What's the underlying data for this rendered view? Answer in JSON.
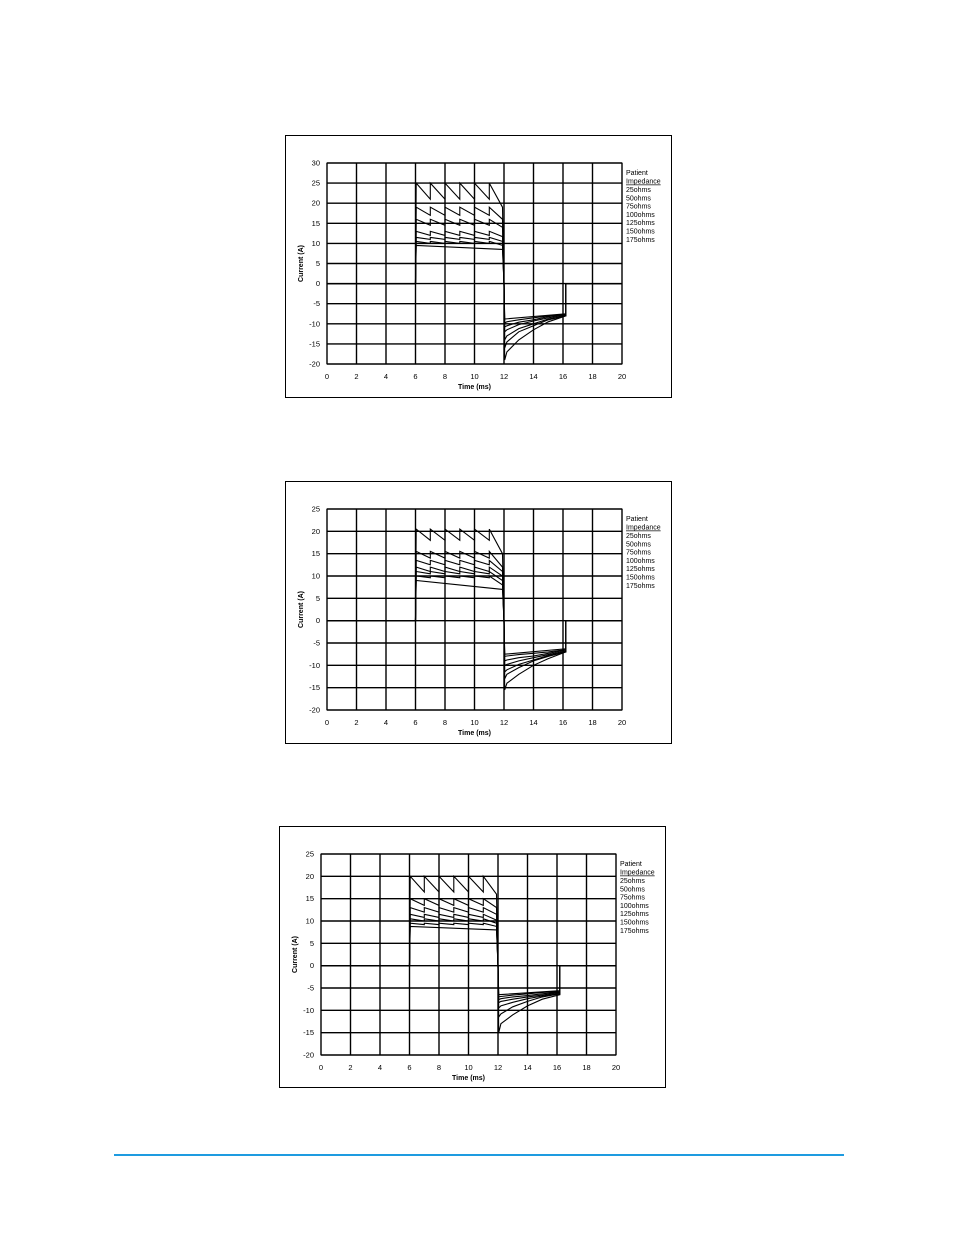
{
  "colors": {
    "footer_rule": "#1e9be0",
    "trace": "#000000"
  },
  "chart_data": [
    {
      "type": "line",
      "xlabel": "Time (ms)",
      "ylabel": "Current (A)",
      "xlim": [
        0,
        20
      ],
      "ylim": [
        -20,
        30
      ],
      "xticks": [
        "0",
        "2",
        "4",
        "6",
        "8",
        "10",
        "12",
        "14",
        "16",
        "18",
        "20"
      ],
      "yticks": [
        "30",
        "25",
        "20",
        "15",
        "10",
        "5",
        "0",
        "-5",
        "-10",
        "-15",
        "-20"
      ],
      "grid": true,
      "legend_position": "right",
      "legend_title": "Patient",
      "legend_subtitle": "Impedance",
      "series": [
        {
          "name": "25ohms",
          "x": [
            0,
            6,
            6.05,
            7,
            7,
            8,
            8,
            9,
            9,
            10,
            10,
            11,
            11,
            11.9,
            11.9,
            12,
            12.05,
            12.2,
            13,
            14,
            15,
            16.2,
            16.2,
            20
          ],
          "y": [
            0,
            0,
            25,
            21,
            25,
            21,
            25,
            21,
            25,
            21,
            25,
            21,
            25,
            19,
            19,
            0,
            -19,
            -17,
            -14,
            -11.5,
            -9.5,
            -8,
            0,
            0
          ]
        },
        {
          "name": "50ohms",
          "x": [
            0,
            6,
            6.05,
            7,
            7,
            8,
            8,
            9,
            9,
            10,
            10,
            11,
            11,
            11.9,
            11.9,
            12,
            12.05,
            12.2,
            13,
            14,
            15,
            16.2,
            16.2,
            20
          ],
          "y": [
            0,
            0,
            19,
            17,
            19,
            17,
            19,
            17,
            19,
            17,
            19,
            17,
            19,
            16,
            16,
            0,
            -16,
            -14.5,
            -12,
            -10.5,
            -9,
            -8,
            0,
            0
          ]
        },
        {
          "name": "75ohms",
          "x": [
            0,
            6,
            6.05,
            7,
            7,
            8,
            8,
            9,
            9,
            10,
            10,
            11,
            11,
            11.9,
            11.9,
            12,
            12.05,
            12.2,
            13,
            14,
            15,
            16.2,
            16.2,
            20
          ],
          "y": [
            0,
            0,
            16,
            14.5,
            16,
            14.5,
            16,
            14.5,
            16,
            14.5,
            16,
            14.5,
            16,
            14,
            14,
            0,
            -14,
            -13,
            -11.2,
            -10,
            -8.8,
            -8,
            0,
            0
          ]
        },
        {
          "name": "100ohms",
          "x": [
            0,
            6,
            6.05,
            7,
            7,
            8,
            8,
            9,
            9,
            10,
            10,
            11,
            11,
            11.9,
            11.9,
            12,
            12.05,
            12.2,
            13,
            14,
            15,
            16.2,
            16.2,
            20
          ],
          "y": [
            0,
            0,
            13,
            12,
            13,
            12,
            13,
            12,
            13,
            12,
            13,
            12,
            13,
            11.7,
            11.7,
            0,
            -12,
            -11.5,
            -10.2,
            -9.3,
            -8.5,
            -7.8,
            0,
            0
          ]
        },
        {
          "name": "125ohms",
          "x": [
            0,
            6,
            6.05,
            7,
            7,
            8,
            8,
            9,
            9,
            10,
            10,
            11,
            11,
            11.9,
            11.9,
            12,
            12.05,
            12.2,
            13,
            14,
            15,
            16.2,
            16.2,
            20
          ],
          "y": [
            0,
            0,
            11.5,
            11,
            11.5,
            11,
            11.5,
            11,
            11.5,
            11,
            11.5,
            11,
            11.5,
            10.5,
            10.5,
            0,
            -10.8,
            -10.5,
            -9.6,
            -9,
            -8.2,
            -7.7,
            0,
            0
          ]
        },
        {
          "name": "150ohms",
          "x": [
            0,
            6,
            6.05,
            7,
            7,
            8,
            8,
            9,
            9,
            10,
            10,
            11,
            11,
            11.9,
            11.9,
            12,
            12.05,
            12.2,
            13,
            14,
            15,
            16.2,
            16.2,
            20
          ],
          "y": [
            0,
            0,
            10.5,
            10,
            10.5,
            10,
            10.5,
            10,
            10.5,
            10,
            10.5,
            10,
            10.5,
            9.5,
            9.5,
            0,
            -9.8,
            -9.5,
            -9,
            -8.5,
            -8,
            -7.6,
            0,
            0
          ]
        },
        {
          "name": "175ohms",
          "x": [
            0,
            6,
            6.05,
            11.9,
            11.9,
            12,
            12.05,
            16.2,
            16.2,
            20
          ],
          "y": [
            0,
            0,
            9.5,
            8.5,
            8.5,
            0,
            -8.8,
            -7.5,
            0,
            0
          ]
        }
      ]
    },
    {
      "type": "line",
      "xlabel": "Time (ms)",
      "ylabel": "Current (A)",
      "xlim": [
        0,
        20
      ],
      "ylim": [
        -20,
        25
      ],
      "xticks": [
        "0",
        "2",
        "4",
        "6",
        "8",
        "10",
        "12",
        "14",
        "16",
        "18",
        "20"
      ],
      "yticks": [
        "25",
        "20",
        "15",
        "10",
        "5",
        "0",
        "-5",
        "-10",
        "-15",
        "-20"
      ],
      "grid": true,
      "legend_position": "right",
      "legend_title": "Patient",
      "legend_subtitle": "Impedance",
      "series": [
        {
          "name": "25ohms",
          "x": [
            0,
            6,
            6.05,
            7,
            7,
            8,
            8,
            9,
            9,
            10,
            10,
            11,
            11,
            11.9,
            11.9,
            12,
            12.05,
            12.2,
            13,
            14,
            15,
            16.2,
            16.2,
            20
          ],
          "y": [
            0,
            0,
            20.5,
            18,
            20.5,
            18,
            20.5,
            18,
            20.5,
            18,
            20.5,
            18,
            20.5,
            15,
            15,
            0,
            -15.5,
            -14,
            -12,
            -10,
            -8.5,
            -7,
            0,
            0
          ]
        },
        {
          "name": "50ohms",
          "x": [
            0,
            6,
            6.05,
            7,
            7,
            8,
            8,
            9,
            9,
            10,
            10,
            11,
            11,
            11.9,
            11.9,
            12,
            12.05,
            12.2,
            13,
            14,
            15,
            16.2,
            16.2,
            20
          ],
          "y": [
            0,
            0,
            15.5,
            14,
            15.5,
            14,
            15.5,
            14,
            15.5,
            14,
            15.5,
            14,
            15.5,
            12,
            12,
            0,
            -13,
            -12,
            -10.5,
            -9,
            -8,
            -7,
            0,
            0
          ]
        },
        {
          "name": "75ohms",
          "x": [
            0,
            6,
            6.05,
            7,
            7,
            8,
            8,
            9,
            9,
            10,
            10,
            11,
            11,
            11.9,
            11.9,
            12,
            12.05,
            12.2,
            13,
            14,
            15,
            16.2,
            16.2,
            20
          ],
          "y": [
            0,
            0,
            13.5,
            12.5,
            13.5,
            12.5,
            13.5,
            12.5,
            13.5,
            12.5,
            13.5,
            12.5,
            13.5,
            11,
            11,
            0,
            -11.5,
            -11,
            -9.8,
            -8.8,
            -7.8,
            -7,
            0,
            0
          ]
        },
        {
          "name": "100ohms",
          "x": [
            0,
            6,
            6.05,
            7,
            7,
            8,
            8,
            9,
            9,
            10,
            10,
            11,
            11,
            11.9,
            11.9,
            12,
            12.05,
            12.2,
            13,
            14,
            15,
            16.2,
            16.2,
            20
          ],
          "y": [
            0,
            0,
            12,
            11,
            12,
            11,
            12,
            11,
            12,
            11,
            12,
            11,
            12,
            10,
            10,
            0,
            -10,
            -9.8,
            -9,
            -8.3,
            -7.6,
            -6.8,
            0,
            0
          ]
        },
        {
          "name": "125ohms",
          "x": [
            0,
            6,
            6.05,
            7,
            7,
            8,
            8,
            9,
            9,
            10,
            10,
            11,
            11,
            11.9,
            11.9,
            12,
            12.05,
            12.2,
            13,
            14,
            15,
            16.2,
            16.2,
            20
          ],
          "y": [
            0,
            0,
            11,
            10.5,
            11,
            10.5,
            11,
            10.5,
            11,
            10.5,
            11,
            10.5,
            11,
            9,
            9,
            0,
            -9,
            -8.8,
            -8.3,
            -7.9,
            -7.3,
            -6.6,
            0,
            0
          ]
        },
        {
          "name": "150ohms",
          "x": [
            0,
            6,
            6.05,
            7,
            7,
            8,
            8,
            9,
            9,
            10,
            10,
            11,
            11,
            11.9,
            11.9,
            12,
            12.05,
            12.2,
            13,
            14,
            15,
            16.2,
            16.2,
            20
          ],
          "y": [
            0,
            0,
            10,
            9.6,
            10,
            9.6,
            10,
            9.6,
            10,
            9.6,
            10,
            9.6,
            10,
            8,
            8,
            0,
            -8,
            -7.9,
            -7.6,
            -7.3,
            -7,
            -6.5,
            0,
            0
          ]
        },
        {
          "name": "175ohms",
          "x": [
            0,
            6,
            6.05,
            11.9,
            11.9,
            12,
            12.05,
            16.2,
            16.2,
            20
          ],
          "y": [
            0,
            0,
            9,
            7,
            7,
            0,
            -7.5,
            -6.3,
            0,
            0
          ]
        }
      ]
    },
    {
      "type": "line",
      "xlabel": "Time (ms)",
      "ylabel": "Current (A)",
      "xlim": [
        0,
        20
      ],
      "ylim": [
        -20,
        25
      ],
      "xticks": [
        "0",
        "2",
        "4",
        "6",
        "8",
        "10",
        "12",
        "14",
        "16",
        "18",
        "20"
      ],
      "yticks": [
        "25",
        "20",
        "15",
        "10",
        "5",
        "0",
        "-5",
        "-10",
        "-15",
        "-20"
      ],
      "grid": true,
      "legend_position": "right",
      "legend_title": "Patient",
      "legend_subtitle": "Impedance",
      "series": [
        {
          "name": "25ohms",
          "x": [
            0,
            6,
            6.05,
            7,
            7,
            8,
            8,
            9,
            9,
            10,
            10,
            11,
            11,
            11.9,
            11.9,
            12,
            12.05,
            12.2,
            13,
            14,
            15,
            16.2,
            16.2,
            20
          ],
          "y": [
            0,
            0,
            20,
            16.5,
            20,
            16.5,
            20,
            16.5,
            20,
            16.5,
            20,
            16.5,
            20,
            16,
            16,
            0,
            -15,
            -13,
            -11,
            -9,
            -7.5,
            -6.5,
            0,
            0
          ]
        },
        {
          "name": "50ohms",
          "x": [
            0,
            6,
            6.05,
            7,
            7,
            8,
            8,
            9,
            9,
            10,
            10,
            11,
            11,
            11.9,
            11.9,
            12,
            12.05,
            12.2,
            13,
            14,
            15,
            16.2,
            16.2,
            20
          ],
          "y": [
            0,
            0,
            15,
            13.5,
            15,
            13.5,
            15,
            13.5,
            15,
            13.5,
            15,
            13.5,
            15,
            13,
            13,
            0,
            -11.5,
            -10.8,
            -9.2,
            -8,
            -7,
            -6.3,
            0,
            0
          ]
        },
        {
          "name": "75ohms",
          "x": [
            0,
            6,
            6.05,
            7,
            7,
            8,
            8,
            9,
            9,
            10,
            10,
            11,
            11,
            11.9,
            11.9,
            12,
            12.05,
            12.2,
            13,
            14,
            15,
            16.2,
            16.2,
            20
          ],
          "y": [
            0,
            0,
            13,
            12,
            13,
            12,
            13,
            12,
            13,
            12,
            13,
            12,
            13,
            11.5,
            11.5,
            0,
            -9.5,
            -9,
            -8.2,
            -7.4,
            -6.8,
            -6.2,
            0,
            0
          ]
        },
        {
          "name": "100ohms",
          "x": [
            0,
            6,
            6.05,
            7,
            7,
            8,
            8,
            9,
            9,
            10,
            10,
            11,
            11,
            11.9,
            11.9,
            12,
            12.05,
            12.2,
            13,
            14,
            15,
            16.2,
            16.2,
            20
          ],
          "y": [
            0,
            0,
            11.5,
            10.8,
            11.5,
            10.8,
            11.5,
            10.8,
            11.5,
            10.8,
            11.5,
            10.8,
            11.5,
            10.2,
            10.2,
            0,
            -8.3,
            -8,
            -7.5,
            -7,
            -6.6,
            -6,
            0,
            0
          ]
        },
        {
          "name": "125ohms",
          "x": [
            0,
            6,
            6.05,
            7,
            7,
            8,
            8,
            9,
            9,
            10,
            10,
            11,
            11,
            11.9,
            11.9,
            12,
            12.05,
            12.2,
            13,
            14,
            15,
            16.2,
            16.2,
            20
          ],
          "y": [
            0,
            0,
            10.5,
            10,
            10.5,
            10,
            10.5,
            10,
            10.5,
            10,
            10.5,
            10,
            10.5,
            9.5,
            9.5,
            0,
            -7.6,
            -7.4,
            -7,
            -6.7,
            -6.3,
            -5.9,
            0,
            0
          ]
        },
        {
          "name": "150ohms",
          "x": [
            0,
            6,
            6.05,
            7,
            7,
            8,
            8,
            9,
            9,
            10,
            10,
            11,
            11,
            11.9,
            11.9,
            12,
            12.05,
            12.2,
            13,
            14,
            15,
            16.2,
            16.2,
            20
          ],
          "y": [
            0,
            0,
            9.5,
            9.2,
            9.5,
            9.2,
            9.5,
            9.2,
            9.5,
            9.2,
            9.5,
            9.2,
            9.5,
            8.8,
            8.8,
            0,
            -7,
            -6.9,
            -6.6,
            -6.3,
            -6,
            -5.8,
            0,
            0
          ]
        },
        {
          "name": "175ohms",
          "x": [
            0,
            6,
            6.05,
            11.9,
            11.9,
            12,
            12.05,
            16.2,
            16.2,
            20
          ],
          "y": [
            0,
            0,
            8.8,
            8,
            8,
            0,
            -6.5,
            -5.6,
            0,
            0
          ]
        }
      ]
    }
  ]
}
